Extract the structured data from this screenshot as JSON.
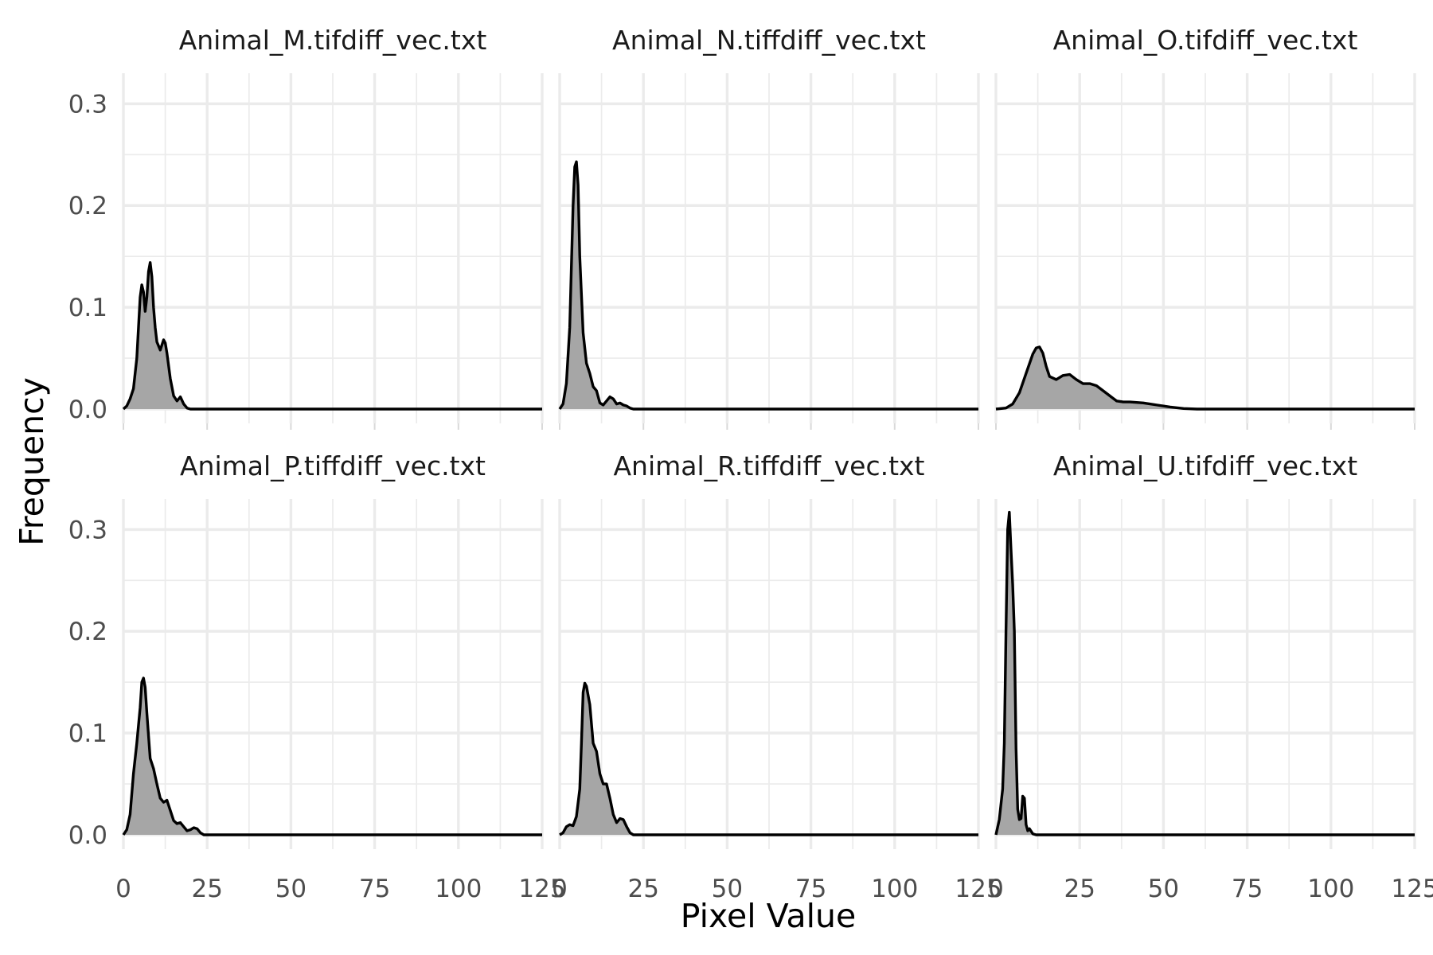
{
  "chart_data": {
    "type": "area",
    "title": "",
    "xlabel": "Pixel Value",
    "ylabel": "Frequency",
    "xlim": [
      0,
      125
    ],
    "ylim": [
      0,
      0.32
    ],
    "x_ticks": [
      0,
      25,
      50,
      75,
      100,
      125
    ],
    "x_tick_labels": [
      "0",
      "25",
      "50",
      "75",
      "100",
      "125"
    ],
    "y_ticks": [
      0.0,
      0.1,
      0.2,
      0.3
    ],
    "y_tick_labels": [
      "0.0",
      "0.1",
      "0.2",
      "0.3"
    ],
    "grid": true,
    "fill_color": "#a6a6a6",
    "line_color": "#000000",
    "panels": [
      {
        "label": "Animal_M.tifdiff_vec.txt",
        "x": [
          0,
          1,
          2,
          3,
          4,
          5,
          5.5,
          6,
          6.5,
          7,
          7.5,
          8,
          8.5,
          9,
          9.5,
          10,
          11,
          12,
          12.5,
          13,
          14,
          15,
          16,
          17,
          18,
          19,
          20,
          125
        ],
        "y": [
          0,
          0.003,
          0.01,
          0.02,
          0.05,
          0.11,
          0.122,
          0.115,
          0.096,
          0.11,
          0.135,
          0.144,
          0.13,
          0.1,
          0.08,
          0.066,
          0.058,
          0.068,
          0.065,
          0.055,
          0.03,
          0.013,
          0.008,
          0.012,
          0.005,
          0.001,
          0,
          0
        ]
      },
      {
        "label": "Animal_N.tiffdiff_vec.txt",
        "x": [
          0,
          1,
          2,
          3,
          4,
          4.5,
          5,
          5.5,
          6,
          7,
          8,
          9,
          10,
          11,
          12,
          13,
          14,
          15,
          16,
          17,
          18,
          19,
          20,
          21,
          22,
          125
        ],
        "y": [
          0,
          0.005,
          0.025,
          0.08,
          0.2,
          0.238,
          0.243,
          0.22,
          0.15,
          0.075,
          0.045,
          0.035,
          0.022,
          0.018,
          0.006,
          0.004,
          0.008,
          0.012,
          0.01,
          0.005,
          0.006,
          0.004,
          0.003,
          0.001,
          0,
          0
        ]
      },
      {
        "label": "Animal_O.tifdiff_vec.txt",
        "x": [
          0,
          3,
          5,
          7,
          9,
          11,
          12,
          13,
          14,
          15,
          16,
          18,
          20,
          22,
          24,
          26,
          28,
          30,
          32,
          34,
          36,
          38,
          40,
          44,
          48,
          52,
          56,
          60,
          125
        ],
        "y": [
          0,
          0.001,
          0.005,
          0.016,
          0.035,
          0.054,
          0.06,
          0.061,
          0.055,
          0.042,
          0.032,
          0.029,
          0.033,
          0.034,
          0.029,
          0.025,
          0.025,
          0.023,
          0.018,
          0.013,
          0.008,
          0.007,
          0.007,
          0.006,
          0.004,
          0.002,
          0.0005,
          0,
          0
        ]
      },
      {
        "label": "Animal_P.tiffdiff_vec.txt",
        "x": [
          0,
          1,
          2,
          3,
          4,
          5,
          5.5,
          6,
          6.5,
          7,
          8,
          9,
          10,
          11,
          12,
          13,
          14,
          15,
          16,
          17,
          18,
          19,
          20,
          21,
          22,
          23,
          24,
          125
        ],
        "y": [
          0,
          0.005,
          0.02,
          0.06,
          0.09,
          0.125,
          0.15,
          0.154,
          0.145,
          0.12,
          0.075,
          0.065,
          0.05,
          0.036,
          0.032,
          0.034,
          0.024,
          0.014,
          0.011,
          0.012,
          0.008,
          0.004,
          0.005,
          0.007,
          0.006,
          0.002,
          0,
          0
        ]
      },
      {
        "label": "Animal_R.tiffdiff_vec.txt",
        "x": [
          0,
          1,
          2,
          3,
          4,
          5,
          6,
          6.5,
          7,
          7.5,
          8,
          9,
          10,
          11,
          12,
          13,
          14,
          15,
          16,
          17,
          18,
          19,
          20,
          21,
          22,
          125
        ],
        "y": [
          0,
          0.002,
          0.008,
          0.01,
          0.009,
          0.018,
          0.045,
          0.09,
          0.14,
          0.149,
          0.146,
          0.128,
          0.09,
          0.082,
          0.06,
          0.05,
          0.05,
          0.036,
          0.02,
          0.012,
          0.016,
          0.015,
          0.008,
          0.002,
          0,
          0
        ]
      },
      {
        "label": "Animal_U.tifdiff_vec.txt",
        "x": [
          0,
          1,
          2,
          2.5,
          3,
          3.5,
          4,
          4.5,
          5,
          5.5,
          6,
          6.5,
          7,
          7.5,
          8,
          8.5,
          9,
          9.5,
          10,
          11,
          12,
          125
        ],
        "y": [
          0,
          0.015,
          0.045,
          0.09,
          0.2,
          0.3,
          0.317,
          0.28,
          0.246,
          0.2,
          0.085,
          0.025,
          0.015,
          0.016,
          0.038,
          0.036,
          0.01,
          0.004,
          0.006,
          0.001,
          0,
          0
        ]
      }
    ]
  }
}
